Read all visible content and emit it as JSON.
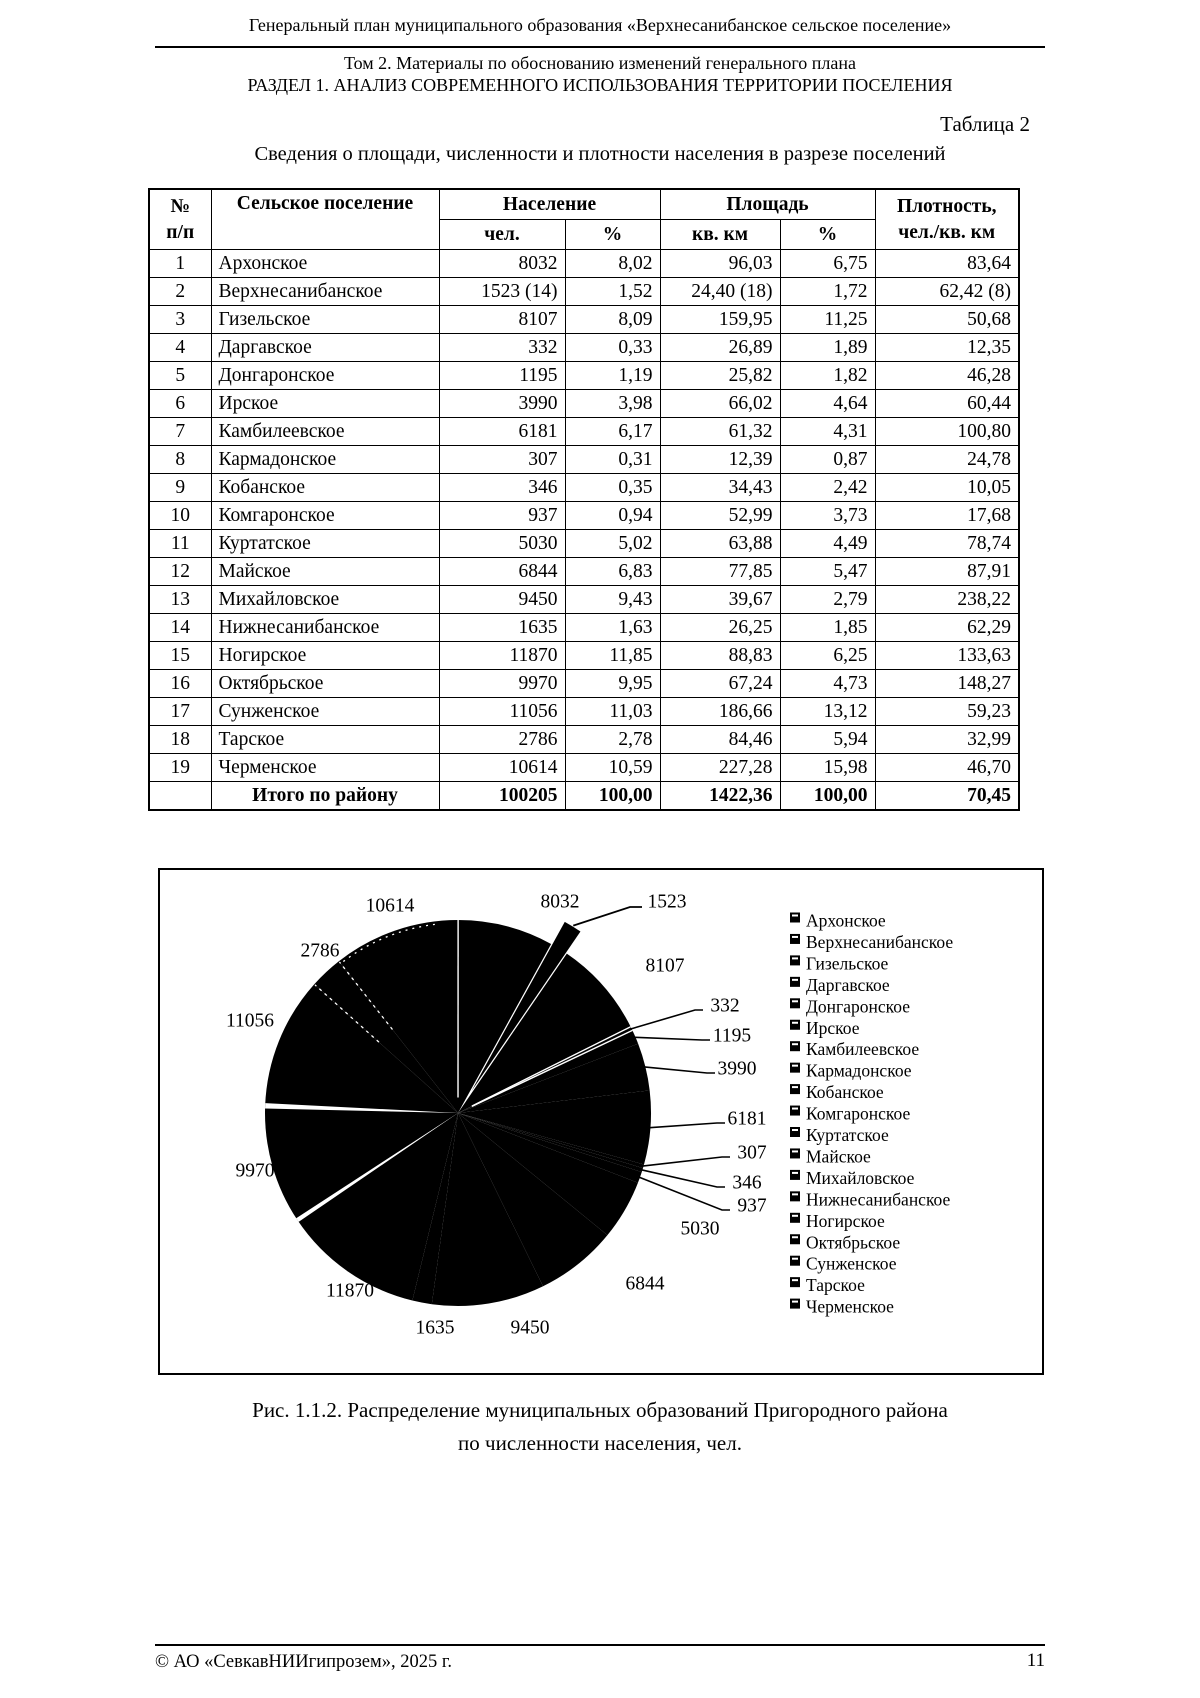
{
  "header": {
    "line1": "Генеральный план муниципального образования «Верхнесанибанское сельское поселение»",
    "line2": "Том 2. Материалы по обоснованию изменений генерального плана",
    "line3": "РАЗДЕЛ 1. АНАЛИЗ СОВРЕМЕННОГО ИСПОЛЬЗОВАНИЯ ТЕРРИТОРИИ ПОСЕЛЕНИЯ"
  },
  "table": {
    "label": "Таблица 2",
    "title": "Сведения о площади, численности и плотности населения в разрезе поселений",
    "headers": {
      "num_line1": "№",
      "num_line2": "п/п",
      "settlement": "Сельское поселение",
      "population_group": "Население",
      "area_group": "Площадь",
      "density_line1": "Плотность,",
      "density_line2": "чел./кв. км",
      "pop_people": "чел.",
      "pop_pct": "%",
      "area_sqkm": "кв. км",
      "area_pct": "%"
    },
    "rows": [
      [
        "1",
        "Архонское",
        "8032",
        "8,02",
        "96,03",
        "6,75",
        "83,64"
      ],
      [
        "2",
        "Верхнесанибанское",
        "1523 (14)",
        "1,52",
        "24,40 (18)",
        "1,72",
        "62,42 (8)"
      ],
      [
        "3",
        "Гизельское",
        "8107",
        "8,09",
        "159,95",
        "11,25",
        "50,68"
      ],
      [
        "4",
        "Даргавское",
        "332",
        "0,33",
        "26,89",
        "1,89",
        "12,35"
      ],
      [
        "5",
        "Донгаронское",
        "1195",
        "1,19",
        "25,82",
        "1,82",
        "46,28"
      ],
      [
        "6",
        "Ирское",
        "3990",
        "3,98",
        "66,02",
        "4,64",
        "60,44"
      ],
      [
        "7",
        "Камбилеевское",
        "6181",
        "6,17",
        "61,32",
        "4,31",
        "100,80"
      ],
      [
        "8",
        "Кармадонское",
        "307",
        "0,31",
        "12,39",
        "0,87",
        "24,78"
      ],
      [
        "9",
        "Кобанское",
        "346",
        "0,35",
        "34,43",
        "2,42",
        "10,05"
      ],
      [
        "10",
        "Комгаронское",
        "937",
        "0,94",
        "52,99",
        "3,73",
        "17,68"
      ],
      [
        "11",
        "Куртатское",
        "5030",
        "5,02",
        "63,88",
        "4,49",
        "78,74"
      ],
      [
        "12",
        "Майское",
        "6844",
        "6,83",
        "77,85",
        "5,47",
        "87,91"
      ],
      [
        "13",
        "Михайловское",
        "9450",
        "9,43",
        "39,67",
        "2,79",
        "238,22"
      ],
      [
        "14",
        "Нижнесанибанское",
        "1635",
        "1,63",
        "26,25",
        "1,85",
        "62,29"
      ],
      [
        "15",
        "Ногирское",
        "11870",
        "11,85",
        "88,83",
        "6,25",
        "133,63"
      ],
      [
        "16",
        "Октябрьское",
        "9970",
        "9,95",
        "67,24",
        "4,73",
        "148,27"
      ],
      [
        "17",
        "Сунженское",
        "11056",
        "11,03",
        "186,66",
        "13,12",
        "59,23"
      ],
      [
        "18",
        "Тарское",
        "2786",
        "2,78",
        "84,46",
        "5,94",
        "32,99"
      ],
      [
        "19",
        "Черменское",
        "10614",
        "10,59",
        "227,28",
        "15,98",
        "46,70"
      ]
    ],
    "total_row": [
      "",
      "Итого по району",
      "100205",
      "100,00",
      "1422,36",
      "100,00",
      "70,45"
    ]
  },
  "chart_data": {
    "type": "pie",
    "categories": [
      "Архонское",
      "Верхнесанибанское",
      "Гизельское",
      "Даргавское",
      "Донгаронское",
      "Ирское",
      "Камбилеевское",
      "Кармадонское",
      "Кобанское",
      "Комгаронское",
      "Куртатское",
      "Майское",
      "Михайловское",
      "Нижнесанибанское",
      "Ногирское",
      "Октябрьское",
      "Сунженское",
      "Тарское",
      "Черменское"
    ],
    "values": [
      8032,
      1523,
      8107,
      332,
      1195,
      3990,
      6181,
      307,
      346,
      937,
      5030,
      6844,
      9450,
      1635,
      11870,
      9970,
      11056,
      2786,
      10614
    ],
    "total": 100205,
    "data_labels": [
      "8032",
      "1523",
      "8107",
      "332",
      "1195",
      "3990",
      "6181",
      "307",
      "346",
      "937",
      "5030",
      "6844",
      "9450",
      "1635",
      "11870",
      "9970",
      "11056",
      "2786",
      "10614"
    ],
    "exploded_category": "Верхнесанибанское",
    "legend_position": "right",
    "slice_color": "#000000",
    "units": "чел."
  },
  "figure": {
    "caption_line1": "Рис. 1.1.2. Распределение муниципальных образований Пригородного района",
    "caption_line2": "по численности населения, чел."
  },
  "footer": {
    "left": "© АО «СевкавНИИгипрозем», 2025 г.",
    "page_number": "11"
  }
}
